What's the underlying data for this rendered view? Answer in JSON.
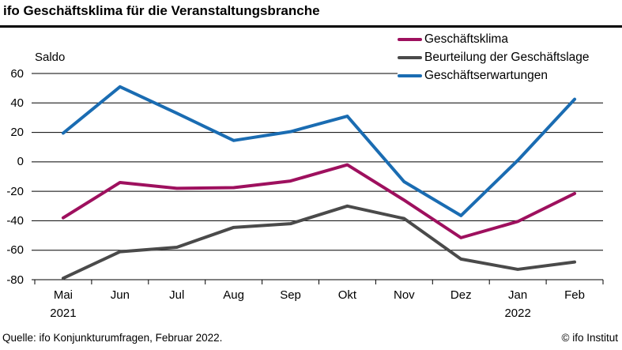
{
  "header": {
    "title": "ifo Geschäftsklima für die Veranstaltungsbranche"
  },
  "footer": {
    "source": "Quelle: ifo Konjunkturumfragen, Februar 2022.",
    "copyright": "© ifo Institut"
  },
  "chart_data": {
    "type": "line",
    "title": "ifo Geschäftsklima für die Veranstaltungsbranche",
    "ylabel": "Saldo",
    "ylim": [
      -80,
      60
    ],
    "yticks": [
      60,
      40,
      20,
      0,
      -20,
      -40,
      -60,
      -80
    ],
    "grid": true,
    "legend_position": "top-right",
    "categories": [
      "Mai",
      "Jun",
      "Jul",
      "Aug",
      "Sep",
      "Okt",
      "Nov",
      "Dez",
      "Jan",
      "Feb"
    ],
    "year_labels": [
      {
        "index": 0,
        "label": "2021"
      },
      {
        "index": 8,
        "label": "2022"
      }
    ],
    "series": [
      {
        "name": "Geschäftsklima",
        "color": "#9e105e",
        "values": [
          -38,
          -14,
          -18,
          -17.5,
          -13,
          -2,
          -26,
          -51.5,
          -40.5,
          -21.5
        ]
      },
      {
        "name": "Beurteilung der Geschäftslage",
        "color": "#4a4a4a",
        "values": [
          -79,
          -61,
          -58,
          -44.5,
          -42,
          -30,
          -38.5,
          -66,
          -73,
          -68
        ]
      },
      {
        "name": "Geschäftserwartungen",
        "color": "#1a6cb2",
        "values": [
          19.5,
          51,
          33,
          14.5,
          20.5,
          31,
          -13.5,
          -36.5,
          1,
          42.5
        ]
      }
    ],
    "axis_color": "#000000",
    "text_color": "#000000"
  }
}
